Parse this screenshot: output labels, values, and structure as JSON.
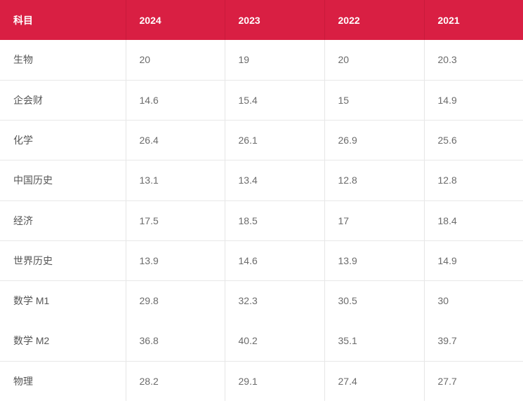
{
  "table": {
    "headers": [
      "科目",
      "2024",
      "2023",
      "2022",
      "2021"
    ],
    "rows": [
      [
        "生物",
        "20",
        "19",
        "20",
        "20.3"
      ],
      [
        "企会财",
        "14.6",
        "15.4",
        "15",
        "14.9"
      ],
      [
        "化学",
        "26.4",
        "26.1",
        "26.9",
        "25.6"
      ],
      [
        "中国历史",
        "13.1",
        "13.4",
        "12.8",
        "12.8"
      ],
      [
        "经济",
        "17.5",
        "18.5",
        "17",
        "18.4"
      ],
      [
        "世界历史",
        "13.9",
        "14.6",
        "13.9",
        "14.9"
      ],
      [
        "数学 M1",
        "29.8",
        "32.3",
        "30.5",
        "30"
      ],
      [
        "数学 M2",
        "36.8",
        "40.2",
        "35.1",
        "39.7"
      ],
      [
        "物理",
        "28.2",
        "29.1",
        "27.4",
        "27.7"
      ]
    ]
  },
  "colors": {
    "header_bg": "#d91f43",
    "header_text": "#ffffff",
    "cell_text": "#6b6b6b",
    "grid_line": "#e6e6e6"
  }
}
